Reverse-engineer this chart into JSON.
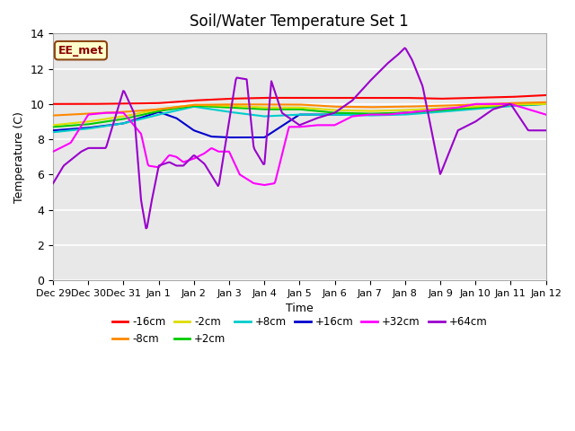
{
  "title": "Soil/Water Temperature Set 1",
  "xlabel": "Time",
  "ylabel": "Temperature (C)",
  "ylim": [
    0,
    14
  ],
  "annotation_text": "EE_met",
  "annotation_bg": "#ffffcc",
  "annotation_border": "#8b4513",
  "x_tick_labels": [
    "Dec 29",
    "Dec 30",
    "Dec 31",
    "Jan 1",
    "Jan 2",
    "Jan 3",
    "Jan 4",
    "Jan 5",
    "Jan 6",
    "Jan 7",
    "Jan 8",
    "Jan 9",
    "Jan 10",
    "Jan 11",
    "Jan 12"
  ],
  "colors": {
    "-16cm": "#ff0000",
    "-8cm": "#ff8800",
    "-2cm": "#dddd00",
    "+2cm": "#00cc00",
    "+8cm": "#00cccc",
    "+16cm": "#0000cc",
    "+32cm": "#ff00ff",
    "+64cm": "#9900cc"
  },
  "legend_order": [
    "-16cm",
    "-8cm",
    "-2cm",
    "+2cm",
    "+8cm",
    "+16cm",
    "+32cm",
    "+64cm"
  ],
  "bg_color": "#e8e8e8",
  "grid_color": "#ffffff",
  "yticks": [
    0,
    2,
    4,
    6,
    8,
    10,
    12,
    14
  ]
}
